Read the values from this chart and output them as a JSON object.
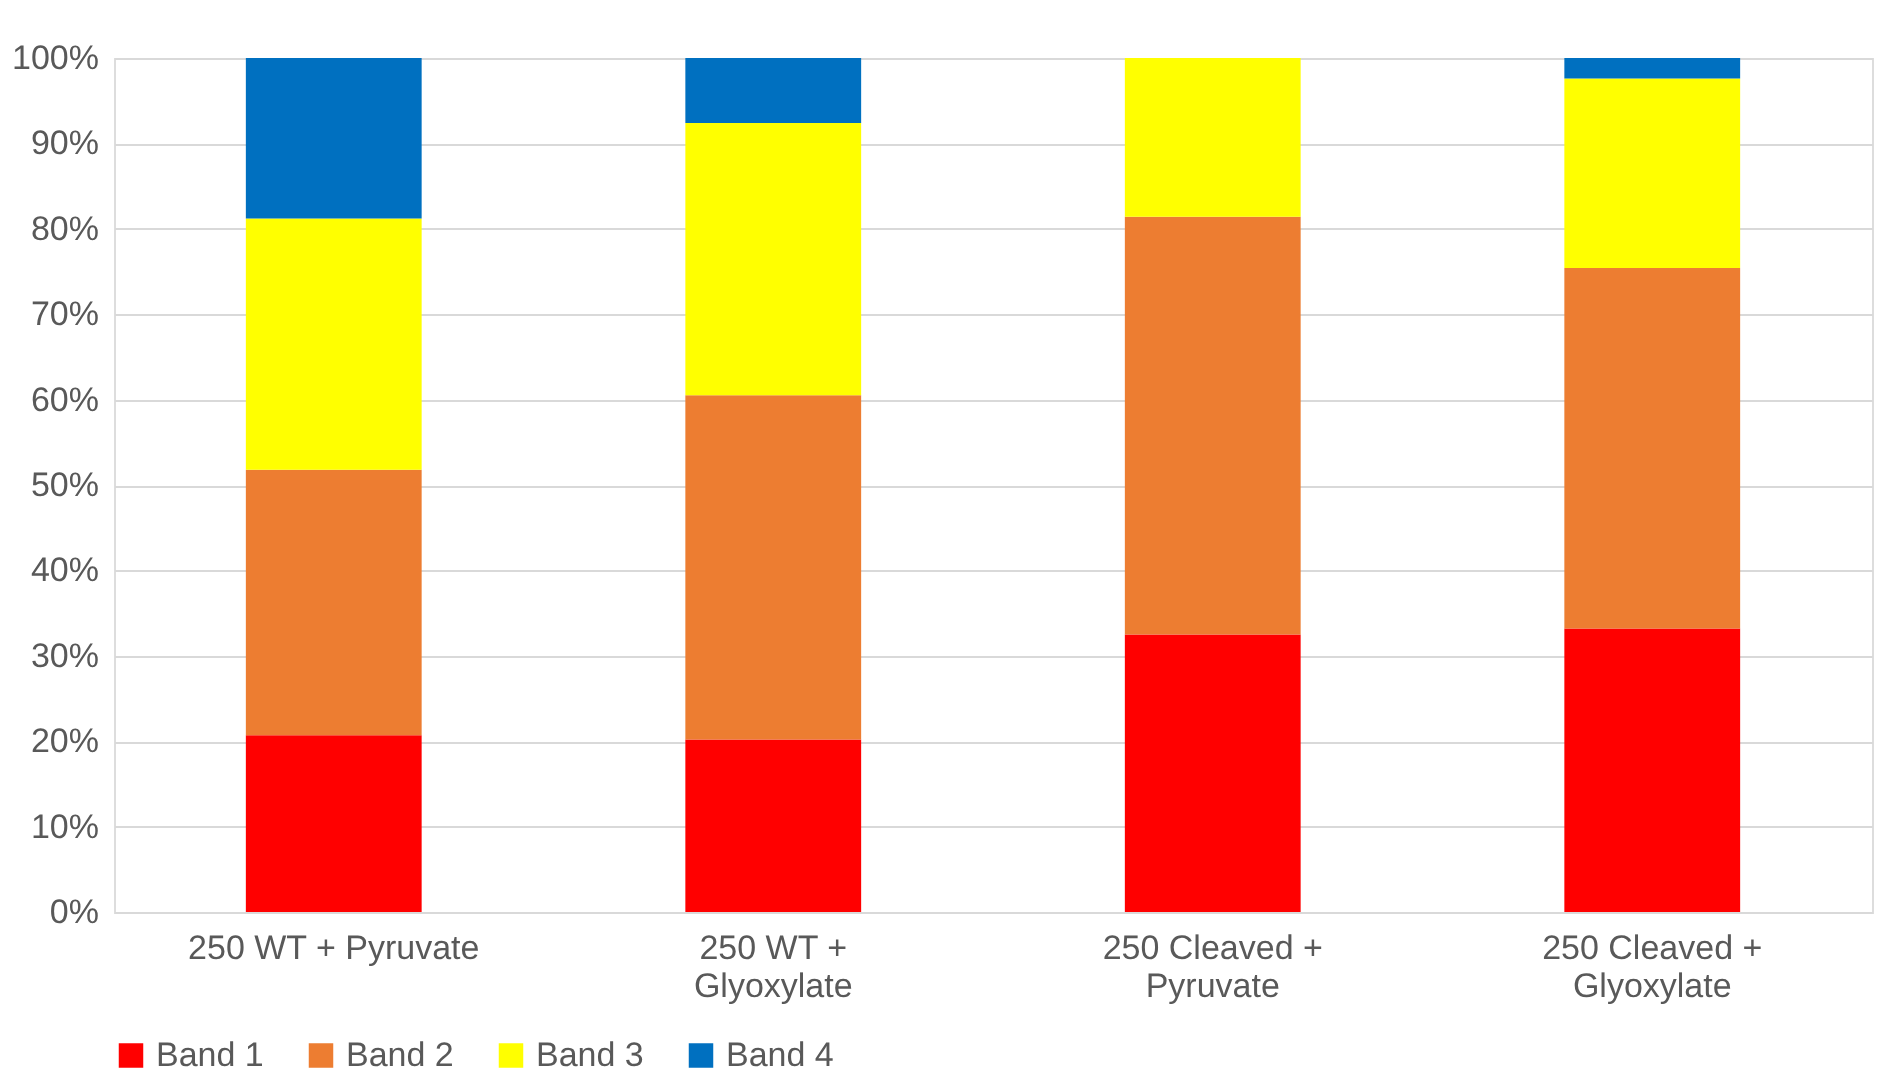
{
  "chart_data": {
    "type": "bar",
    "stacked": true,
    "categories": [
      "250 WT + Pyruvate",
      "250 WT + Glyoxylate",
      "250 Cleaved + Pyruvate",
      "250 Cleaved + Glyoxylate"
    ],
    "series": [
      {
        "name": "Band 1",
        "color": "#ff0000",
        "values": [
          20.7,
          20.2,
          32.5,
          33.2
        ]
      },
      {
        "name": "Band 2",
        "color": "#ed7d31",
        "values": [
          31.1,
          40.3,
          48.9,
          42.2
        ]
      },
      {
        "name": "Band 3",
        "color": "#ffff00",
        "values": [
          29.4,
          31.9,
          18.6,
          22.2
        ]
      },
      {
        "name": "Band 4",
        "color": "#0070c0",
        "values": [
          18.8,
          7.6,
          0,
          2.4
        ]
      }
    ],
    "ylim": [
      0,
      100
    ],
    "yticks": [
      {
        "value": 0,
        "label": "0%"
      },
      {
        "value": 10,
        "label": "10%"
      },
      {
        "value": 20,
        "label": "20%"
      },
      {
        "value": 30,
        "label": "30%"
      },
      {
        "value": 40,
        "label": "40%"
      },
      {
        "value": 50,
        "label": "50%"
      },
      {
        "value": 60,
        "label": "60%"
      },
      {
        "value": 70,
        "label": "70%"
      },
      {
        "value": 80,
        "label": "80%"
      },
      {
        "value": 90,
        "label": "90%"
      },
      {
        "value": 100,
        "label": "100%"
      }
    ],
    "grid": "y",
    "legend": "bottom"
  }
}
